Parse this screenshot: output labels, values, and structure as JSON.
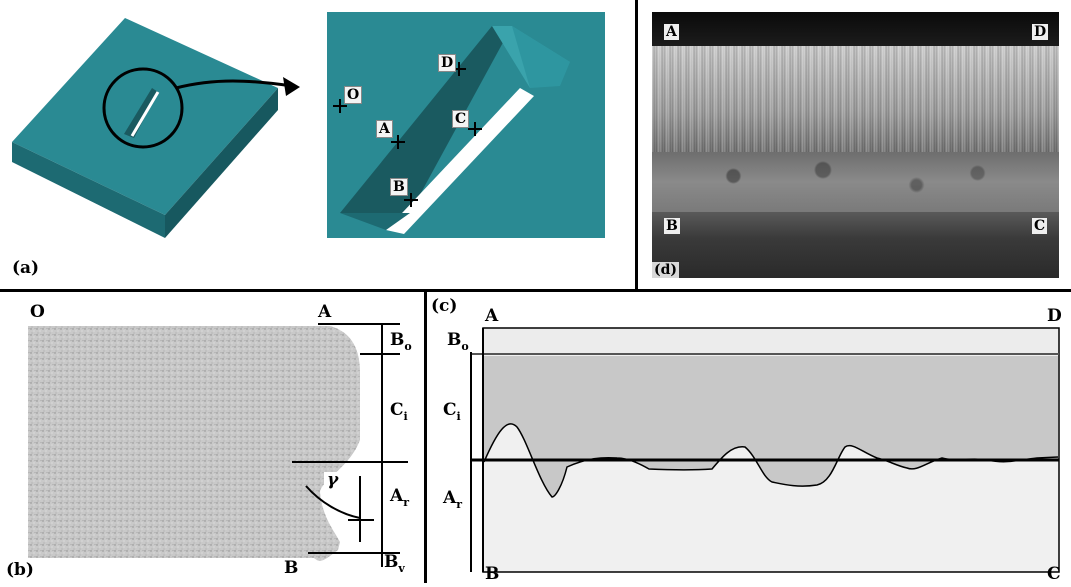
{
  "panels": {
    "a": {
      "label": "(a)",
      "points": [
        "O",
        "A",
        "D",
        "C",
        "B"
      ]
    },
    "b": {
      "label": "(b)",
      "corner_labels": {
        "top_left": "O",
        "top_right": "A",
        "bottom": "B"
      },
      "zone_labels": {
        "bo": "B",
        "bo_sub": "o",
        "ci": "C",
        "ci_sub": "i",
        "ar": "A",
        "ar_sub": "r",
        "bv": "B",
        "bv_sub": "v"
      },
      "angle_label": "γ"
    },
    "c": {
      "label": "(c)",
      "corner_labels": {
        "top_left": "A",
        "top_right": "D",
        "bottom_left": "B",
        "bottom_right": "C"
      },
      "zone_labels": {
        "bo": "B",
        "bo_sub": "o",
        "ci": "C",
        "ci_sub": "i",
        "ar": "A",
        "ar_sub": "r"
      }
    },
    "d": {
      "label": "(d)",
      "corner_labels": {
        "top_left": "A",
        "top_right": "D",
        "bottom_left": "B",
        "bottom_right": "C"
      }
    }
  },
  "colors": {
    "teal": "#2a8a93",
    "teal_dark": "#1d6a72",
    "teal_light": "#3aa3ac",
    "grain": "#c9c9c9",
    "shade": "#c8c8c8",
    "light_shade": "#eeeeee"
  }
}
